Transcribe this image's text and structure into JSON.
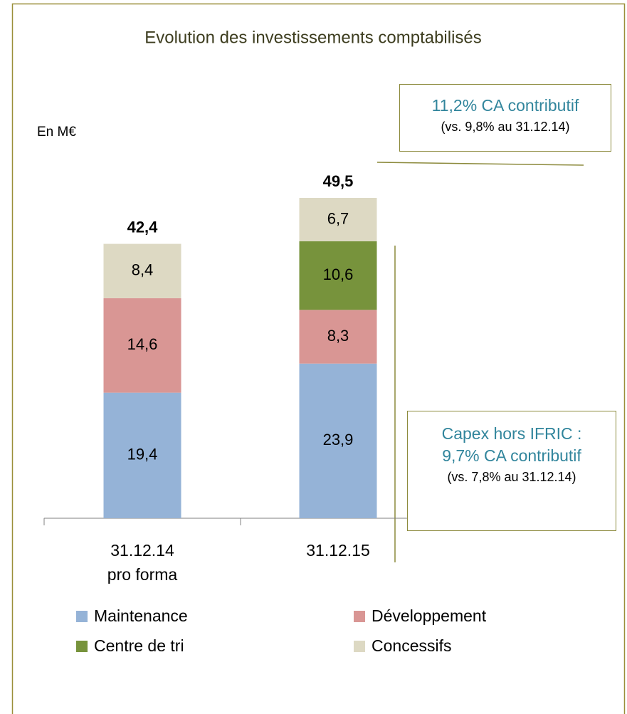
{
  "chart_data": {
    "type": "stacked_bar",
    "title": "Evolution des investissements comptabilisés",
    "unit": "En M€",
    "categories": [
      "31.12.14\npro forma",
      "31.12.15"
    ],
    "series": [
      {
        "name": "Maintenance",
        "color": "#95b3d7",
        "values": [
          19.4,
          23.9
        ],
        "value_labels": [
          "19,4",
          "23,9"
        ]
      },
      {
        "name": "Développement",
        "color": "#d99694",
        "values": [
          14.6,
          8.3
        ],
        "value_labels": [
          "14,6",
          "8,3"
        ]
      },
      {
        "name": "Centre de tri",
        "color": "#77933c",
        "values": [
          null,
          10.6
        ],
        "value_labels": [
          null,
          "10,6"
        ]
      },
      {
        "name": "Concessifs",
        "color": "#ddd9c3",
        "values": [
          8.4,
          6.7
        ],
        "value_labels": [
          "8,4",
          "6,7"
        ]
      }
    ],
    "totals": {
      "values": [
        42.4,
        49.5
      ],
      "value_labels": [
        "42,4",
        "49,5"
      ]
    },
    "annotations": [
      "11,2% CA contributif",
      "(vs. 9,8% au 31.12.14)",
      "Capex hors IFRIC :",
      "9,7% CA contributif",
      "(vs. 7,8% au 31.12.14)"
    ]
  }
}
